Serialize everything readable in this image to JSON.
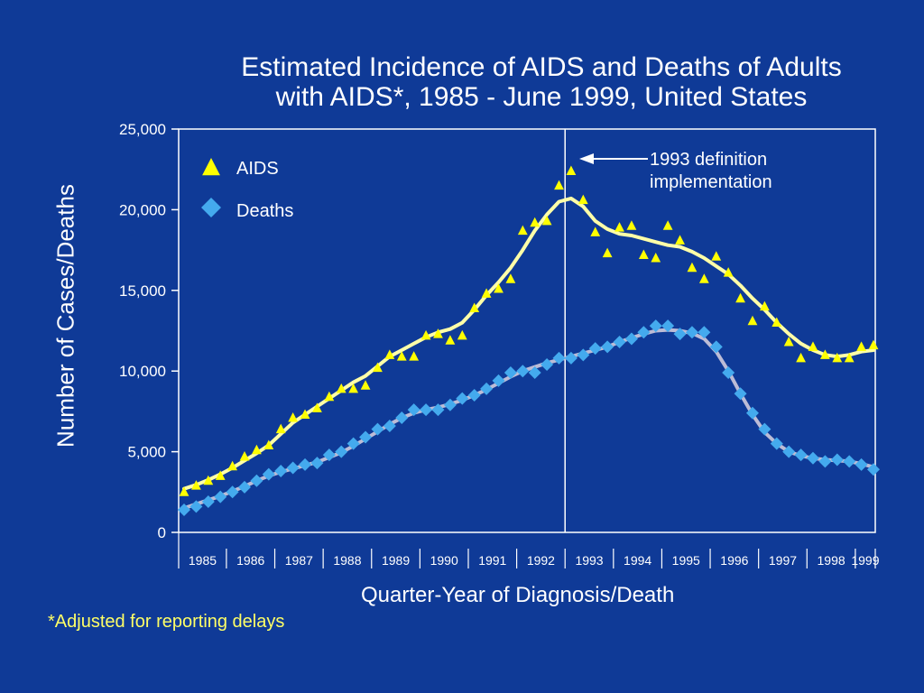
{
  "colors": {
    "background": "#0f3a97",
    "aids": "#ffff00",
    "aids_line": "#ffffa8",
    "deaths": "#44aaee",
    "deaths_line": "#bcbcd6",
    "footnote": "#ffff66"
  },
  "chart_data": {
    "type": "line",
    "title": "Estimated Incidence of AIDS and Deaths of Adults with AIDS*, 1985 - June 1999, United States",
    "title_lines": [
      "Estimated Incidence of AIDS and Deaths of Adults",
      "with AIDS*, 1985 - June 1999, United States"
    ],
    "xlabel": "Quarter-Year of Diagnosis/Death",
    "ylabel": "Number of Cases/Deaths",
    "footnote": "*Adjusted for reporting delays",
    "ylim": [
      0,
      25000
    ],
    "yticks": [
      0,
      5000,
      10000,
      15000,
      20000,
      25000
    ],
    "ytick_labels": [
      "0",
      "5,000",
      "10,000",
      "15,000",
      "20,000",
      "25,000"
    ],
    "year_labels": [
      "1985",
      "1986",
      "1987",
      "1988",
      "1989",
      "1990",
      "1991",
      "1992",
      "1993",
      "1994",
      "1995",
      "1996",
      "1997",
      "1998",
      "1999"
    ],
    "legend_position": "top-left",
    "grid": false,
    "annotation": {
      "text_lines": [
        "1993 definition",
        "implementation"
      ],
      "quarter_index": 32
    },
    "series": [
      {
        "name": "AIDS",
        "marker": "triangle",
        "points": [
          2500,
          2900,
          3200,
          3500,
          4100,
          4700,
          5100,
          5400,
          6400,
          7100,
          7300,
          7700,
          8400,
          8900,
          8900,
          9100,
          10200,
          11000,
          10900,
          10900,
          12200,
          12300,
          11900,
          12200,
          13900,
          14800,
          15100,
          15700,
          18700,
          19200,
          19300,
          21500,
          22400,
          20600,
          18600,
          17300,
          18900,
          19000,
          17200,
          17000,
          19000,
          18100,
          16400,
          15700,
          17100,
          16100,
          14500,
          13100,
          14000,
          13000,
          11800,
          10800,
          11500,
          11000,
          10800,
          10800,
          11500,
          11600
        ],
        "trend": [
          2700,
          2950,
          3250,
          3600,
          4000,
          4450,
          4900,
          5400,
          6100,
          6800,
          7300,
          7800,
          8300,
          8800,
          9300,
          9700,
          10300,
          10900,
          11300,
          11700,
          12100,
          12400,
          12600,
          13000,
          13800,
          14700,
          15500,
          16400,
          17500,
          18700,
          19700,
          20500,
          20700,
          20200,
          19300,
          18800,
          18500,
          18400,
          18200,
          18000,
          17800,
          17700,
          17400,
          17000,
          16500,
          16000,
          15300,
          14500,
          13800,
          13000,
          12300,
          11700,
          11300,
          11000,
          10900,
          11000,
          11200,
          11300
        ]
      },
      {
        "name": "Deaths",
        "marker": "diamond",
        "points": [
          1400,
          1600,
          1900,
          2200,
          2500,
          2800,
          3200,
          3600,
          3800,
          4000,
          4200,
          4300,
          4800,
          5000,
          5500,
          5900,
          6400,
          6600,
          7100,
          7600,
          7600,
          7600,
          7900,
          8300,
          8500,
          8900,
          9400,
          9900,
          10000,
          9900,
          10400,
          10800,
          10800,
          11000,
          11400,
          11500,
          11800,
          12000,
          12400,
          12800,
          12800,
          12300,
          12400,
          12400,
          11500,
          9900,
          8600,
          7400,
          6400,
          5500,
          5000,
          4800,
          4600,
          4400,
          4500,
          4400,
          4200,
          3900
        ],
        "trend": [
          1500,
          1750,
          2000,
          2250,
          2550,
          2850,
          3200,
          3500,
          3750,
          3950,
          4150,
          4350,
          4650,
          4950,
          5350,
          5800,
          6250,
          6700,
          7100,
          7400,
          7600,
          7750,
          7950,
          8200,
          8500,
          8850,
          9250,
          9650,
          10000,
          10250,
          10500,
          10700,
          10900,
          11100,
          11300,
          11500,
          11800,
          12050,
          12300,
          12500,
          12550,
          12500,
          12350,
          12000,
          11200,
          10000,
          8600,
          7300,
          6200,
          5500,
          5000,
          4750,
          4600,
          4500,
          4450,
          4400,
          4250,
          4050
        ]
      }
    ]
  }
}
